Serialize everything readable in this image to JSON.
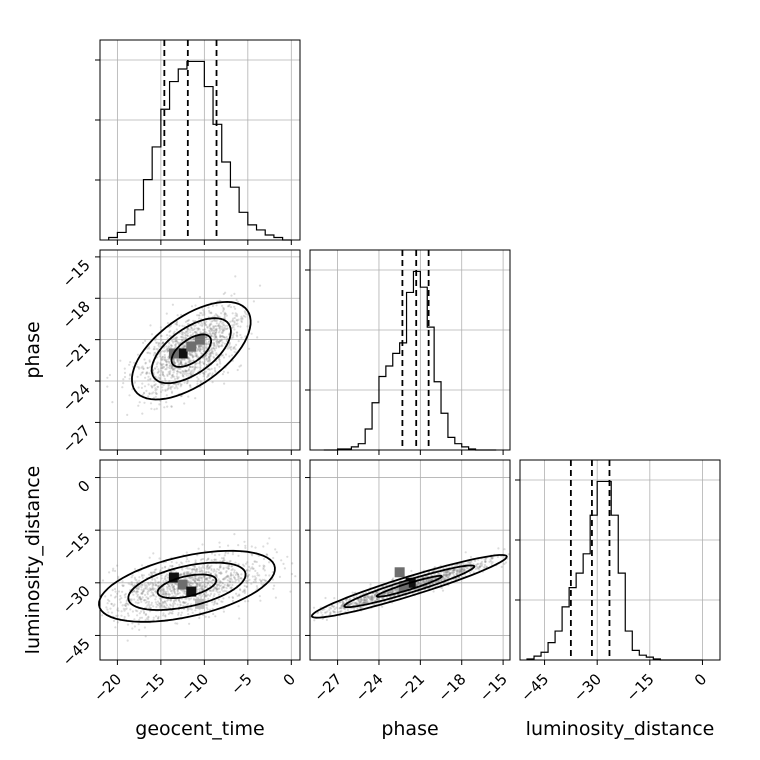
{
  "chart_data": {
    "type": "corner",
    "parameters": [
      "geocent_time",
      "phase",
      "luminosity_distance"
    ],
    "axis_labels": {
      "x": [
        "geocent_time",
        "phase",
        "luminosity_distance"
      ],
      "y": [
        "phase",
        "luminosity_distance"
      ]
    },
    "ranges": {
      "geocent_time": [
        -22,
        1
      ],
      "phase": [
        -29,
        -14.5
      ],
      "luminosity_distance": [
        -52,
        5
      ]
    },
    "ticks": {
      "geocent_time": [
        -20,
        -15,
        -10,
        -5,
        0
      ],
      "phase": [
        -27,
        -24,
        -21,
        -18,
        -15
      ],
      "luminosity_distance": [
        -45,
        -30,
        -15,
        0
      ]
    },
    "tick_labels": {
      "geocent_time": [
        "−20",
        "−15",
        "−10",
        "−5",
        "0"
      ],
      "phase": [
        "−27",
        "−24",
        "−21",
        "−18",
        "−15"
      ],
      "luminosity_distance": [
        "−45",
        "−30",
        "−15",
        "0"
      ]
    },
    "quantiles": {
      "geocent_time": [
        -14.6,
        -11.9,
        -8.6
      ],
      "phase": [
        -22.3,
        -21.3,
        -20.4
      ],
      "luminosity_distance": [
        -37.5,
        -31.5,
        -26.5
      ]
    },
    "histograms": {
      "geocent_time": {
        "edges": [
          -21,
          -20,
          -19,
          -18,
          -17,
          -16,
          -15,
          -14,
          -13,
          -12,
          -11,
          -10,
          -9,
          -8,
          -7,
          -6,
          -5,
          -4,
          -3,
          -2,
          -1,
          0
        ],
        "counts": [
          1,
          3,
          6,
          12,
          24,
          37,
          52,
          63,
          68,
          71,
          71,
          61,
          46,
          31,
          21,
          11,
          6,
          4,
          2,
          1,
          0
        ]
      },
      "phase": {
        "edges": [
          -28,
          -27.5,
          -27,
          -26.5,
          -26,
          -25.5,
          -25,
          -24.5,
          -24,
          -23.5,
          -23,
          -22.5,
          -22,
          -21.5,
          -21,
          -20.5,
          -20,
          -19.5,
          -19,
          -18.5,
          -18,
          -17.5,
          -17,
          -16.5,
          -16,
          -15.5
        ],
        "counts": [
          0,
          0,
          1,
          1,
          3,
          6,
          20,
          45,
          70,
          80,
          92,
          102,
          150,
          170,
          155,
          117,
          65,
          35,
          12,
          6,
          3,
          1,
          0,
          0,
          0
        ]
      },
      "luminosity_distance": {
        "edges": [
          -50,
          -48,
          -46,
          -44,
          -42,
          -40,
          -38,
          -36,
          -34,
          -32,
          -30,
          -28,
          -26,
          -24,
          -22,
          -20,
          -18,
          -16,
          -14,
          -12,
          -10,
          -8,
          -6,
          -4,
          -2,
          0
        ],
        "counts": [
          1,
          4,
          8,
          18,
          30,
          55,
          75,
          90,
          110,
          150,
          185,
          185,
          150,
          90,
          30,
          10,
          5,
          3,
          1,
          0,
          0,
          0,
          0,
          0,
          0
        ]
      }
    },
    "density_cells": {
      "phase_vs_geocent_time": [
        {
          "x": -12.5,
          "y": -22.0,
          "level": 3
        },
        {
          "x": -11.5,
          "y": -21.5,
          "level": 2
        },
        {
          "x": -10.5,
          "y": -21.0,
          "level": 2
        },
        {
          "x": -13.5,
          "y": -22.0,
          "level": 2
        }
      ],
      "luminosity_distance_vs_geocent_time": [
        {
          "x": -13.5,
          "y": -28.5,
          "level": 3
        },
        {
          "x": -12.5,
          "y": -30.5,
          "level": 2
        },
        {
          "x": -11.5,
          "y": -32.5,
          "level": 3
        },
        {
          "x": -10.5,
          "y": -36.0,
          "level": 1
        }
      ],
      "luminosity_distance_vs_phase": [
        {
          "x": -22.5,
          "y": -27.0,
          "level": 2
        },
        {
          "x": -21.7,
          "y": -30.0,
          "level": 3
        },
        {
          "x": -22.2,
          "y": -31.0,
          "level": 2
        }
      ]
    },
    "contours": {
      "phase_vs_geocent_time": {
        "center": [
          -11.5,
          -21.8
        ],
        "sigma": [
          3.2,
          1.2
        ],
        "angle_deg": 20,
        "levels": [
          1,
          2,
          3
        ]
      },
      "luminosity_distance_vs_geocent_time": {
        "center": [
          -12.0,
          -31.0
        ],
        "sigma": [
          3.2,
          5.5
        ],
        "angle_deg": -45,
        "levels": [
          1,
          2,
          3
        ]
      },
      "luminosity_distance_vs_phase": {
        "center": [
          -21.8,
          -31.0
        ],
        "sigma": [
          0.8,
          5.0
        ],
        "angle_deg": -38,
        "levels": [
          1,
          2,
          3
        ]
      }
    },
    "grid": true,
    "scatter_color": "#808080"
  }
}
